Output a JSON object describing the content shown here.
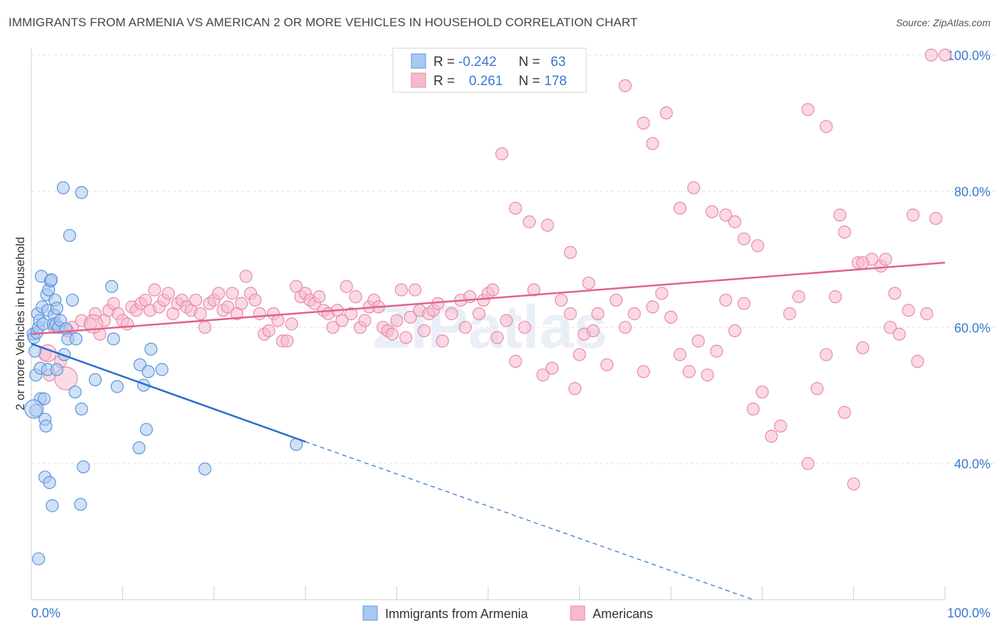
{
  "title": "IMMIGRANTS FROM ARMENIA VS AMERICAN 2 OR MORE VEHICLES IN HOUSEHOLD CORRELATION CHART",
  "source": "Source: ZipAtlas.com",
  "watermark": "ZIPatlas",
  "colors": {
    "blue_fill": "#a9c8ef",
    "blue_stroke": "#5b93dc",
    "blue_line": "#2a6fd0",
    "pink_fill": "#f6b9cd",
    "pink_stroke": "#e889a9",
    "pink_line": "#e0628c",
    "accent_text": "#3a78d0",
    "grid": "#e3e3e3"
  },
  "legend": {
    "rows": [
      {
        "r_label": "R =",
        "r_value": "-0.242",
        "n_label": "N =",
        "n_value": "63"
      },
      {
        "r_label": "R =",
        "r_value": "0.261",
        "n_label": "N =",
        "n_value": "178"
      }
    ]
  },
  "bottom_legend": [
    "Immigrants from Armenia",
    "Americans"
  ],
  "chart_data": {
    "type": "scatter",
    "title": "IMMIGRANTS FROM ARMENIA VS AMERICAN 2 OR MORE VEHICLES IN HOUSEHOLD CORRELATION CHART",
    "xlabel": "",
    "ylabel": "2 or more Vehicles in Household",
    "xlim": [
      0,
      100
    ],
    "ylim": [
      20,
      101
    ],
    "x_tick_labels": [
      "0.0%",
      "100.0%"
    ],
    "y_tick_values": [
      40,
      60,
      80,
      100
    ],
    "y_tick_labels": [
      "40.0%",
      "60.0%",
      "80.0%",
      "100.0%"
    ],
    "grid": true,
    "legend_position": "top-center",
    "series": [
      {
        "name": "Immigrants from Armenia",
        "color": "#a9c8ef",
        "stats": {
          "R": -0.242,
          "N": 63
        },
        "trend": {
          "x": [
            0,
            30
          ],
          "y": [
            57.6,
            43.2
          ],
          "dashed_to": [
            79,
            20
          ]
        },
        "points": [
          [
            0.2,
            59
          ],
          [
            0.3,
            58.5
          ],
          [
            0.4,
            56.5
          ],
          [
            0.5,
            53
          ],
          [
            0.5,
            47.8
          ],
          [
            0.6,
            59.2
          ],
          [
            0.7,
            62
          ],
          [
            0.8,
            60
          ],
          [
            0.9,
            61
          ],
          [
            1.0,
            54
          ],
          [
            1.0,
            49.5
          ],
          [
            1.1,
            67.5
          ],
          [
            1.2,
            63
          ],
          [
            1.3,
            60.5
          ],
          [
            1.4,
            49.5
          ],
          [
            1.5,
            46.5
          ],
          [
            1.5,
            38
          ],
          [
            1.6,
            45.5
          ],
          [
            1.7,
            64.8
          ],
          [
            1.8,
            62.5
          ],
          [
            1.8,
            53.8
          ],
          [
            1.9,
            65.5
          ],
          [
            2.0,
            37.2
          ],
          [
            2.1,
            66.8
          ],
          [
            2.2,
            67
          ],
          [
            2.3,
            33.8
          ],
          [
            2.4,
            60.5
          ],
          [
            2.5,
            61.8
          ],
          [
            2.6,
            64
          ],
          [
            2.7,
            60.5
          ],
          [
            2.8,
            53.8
          ],
          [
            2.8,
            62.8
          ],
          [
            3.0,
            60
          ],
          [
            3.2,
            61
          ],
          [
            3.5,
            80.5
          ],
          [
            3.6,
            56
          ],
          [
            3.8,
            59.8
          ],
          [
            4.0,
            58.3
          ],
          [
            4.2,
            73.5
          ],
          [
            4.5,
            64
          ],
          [
            4.8,
            50.5
          ],
          [
            4.9,
            58.3
          ],
          [
            5.4,
            34
          ],
          [
            5.5,
            79.8
          ],
          [
            5.5,
            48
          ],
          [
            5.7,
            39.5
          ],
          [
            7.0,
            52.3
          ],
          [
            8.8,
            66
          ],
          [
            9.0,
            58.3
          ],
          [
            9.4,
            51.3
          ],
          [
            11.8,
            42.3
          ],
          [
            11.9,
            54.5
          ],
          [
            12.3,
            51.5
          ],
          [
            12.6,
            45
          ],
          [
            12.8,
            53.5
          ],
          [
            13.1,
            56.8
          ],
          [
            14.3,
            53.8
          ],
          [
            19.0,
            39.2
          ],
          [
            29.0,
            42.8
          ],
          [
            0.8,
            26
          ]
        ]
      },
      {
        "name": "Americans",
        "color": "#f6b9cd",
        "stats": {
          "R": 0.261,
          "N": 178
        },
        "trend": {
          "x": [
            0,
            100
          ],
          "y": [
            59,
            69.5
          ]
        },
        "points": [
          [
            1.5,
            56
          ],
          [
            2.0,
            53
          ],
          [
            2.5,
            60
          ],
          [
            3.2,
            55
          ],
          [
            4.0,
            59.5
          ],
          [
            4.5,
            60
          ],
          [
            5.5,
            61
          ],
          [
            6.5,
            60.5
          ],
          [
            7.0,
            62
          ],
          [
            7.5,
            59
          ],
          [
            8.0,
            61
          ],
          [
            8.5,
            62.5
          ],
          [
            9.0,
            63.5
          ],
          [
            9.5,
            62
          ],
          [
            10.0,
            61
          ],
          [
            10.5,
            60.5
          ],
          [
            11.0,
            63
          ],
          [
            11.5,
            62.5
          ],
          [
            12.0,
            63.5
          ],
          [
            12.5,
            64
          ],
          [
            13.0,
            62.5
          ],
          [
            13.5,
            65.5
          ],
          [
            14.0,
            63
          ],
          [
            14.5,
            64
          ],
          [
            15.0,
            65
          ],
          [
            15.5,
            62
          ],
          [
            16.0,
            63.5
          ],
          [
            16.5,
            64
          ],
          [
            17.0,
            63
          ],
          [
            17.5,
            62.5
          ],
          [
            18.0,
            64
          ],
          [
            18.5,
            62
          ],
          [
            19.0,
            60
          ],
          [
            19.5,
            63.5
          ],
          [
            20.0,
            64
          ],
          [
            20.5,
            65
          ],
          [
            21.0,
            62.5
          ],
          [
            21.5,
            63
          ],
          [
            22.0,
            65
          ],
          [
            22.5,
            62
          ],
          [
            23.0,
            63.5
          ],
          [
            23.5,
            67.5
          ],
          [
            24.0,
            65
          ],
          [
            24.5,
            64
          ],
          [
            25.0,
            62
          ],
          [
            25.5,
            59
          ],
          [
            26.0,
            59.5
          ],
          [
            26.5,
            62
          ],
          [
            27.0,
            61
          ],
          [
            27.5,
            58
          ],
          [
            28.0,
            58
          ],
          [
            28.5,
            60.5
          ],
          [
            29.0,
            66
          ],
          [
            29.5,
            64.5
          ],
          [
            30.0,
            65
          ],
          [
            30.5,
            64
          ],
          [
            31.0,
            63.5
          ],
          [
            31.5,
            64.5
          ],
          [
            32.0,
            62.5
          ],
          [
            32.5,
            62
          ],
          [
            33.0,
            60
          ],
          [
            33.5,
            62.5
          ],
          [
            34.0,
            61
          ],
          [
            34.5,
            66
          ],
          [
            35.0,
            62
          ],
          [
            35.5,
            64.5
          ],
          [
            36.0,
            60
          ],
          [
            36.5,
            61
          ],
          [
            37.0,
            63
          ],
          [
            37.5,
            64
          ],
          [
            38.0,
            63
          ],
          [
            38.5,
            60
          ],
          [
            39.0,
            59.5
          ],
          [
            39.5,
            59
          ],
          [
            40.0,
            61
          ],
          [
            40.5,
            65.5
          ],
          [
            41.0,
            58.5
          ],
          [
            41.5,
            61.5
          ],
          [
            42.0,
            65.5
          ],
          [
            42.5,
            62.5
          ],
          [
            43.0,
            59.5
          ],
          [
            43.5,
            62
          ],
          [
            44.0,
            62.5
          ],
          [
            44.5,
            63.5
          ],
          [
            45.0,
            58
          ],
          [
            46.0,
            62
          ],
          [
            47.0,
            64
          ],
          [
            47.5,
            60
          ],
          [
            48.0,
            64.5
          ],
          [
            49.0,
            62
          ],
          [
            49.5,
            64
          ],
          [
            50.0,
            65
          ],
          [
            50.5,
            65.5
          ],
          [
            51.0,
            58.5
          ],
          [
            52.0,
            61
          ],
          [
            53.0,
            55
          ],
          [
            54.0,
            60
          ],
          [
            55.0,
            65.5
          ],
          [
            56.0,
            53
          ],
          [
            57.0,
            54
          ],
          [
            58.0,
            64
          ],
          [
            59.0,
            62
          ],
          [
            59.5,
            51
          ],
          [
            60.0,
            56
          ],
          [
            60.5,
            59
          ],
          [
            61.0,
            66.5
          ],
          [
            61.5,
            59.5
          ],
          [
            62.0,
            62
          ],
          [
            63.0,
            54.5
          ],
          [
            64.0,
            64
          ],
          [
            65.0,
            60
          ],
          [
            66.0,
            62
          ],
          [
            67.0,
            53.5
          ],
          [
            68.0,
            63
          ],
          [
            69.0,
            65
          ],
          [
            70.0,
            61.5
          ],
          [
            71.0,
            56
          ],
          [
            72.0,
            53.5
          ],
          [
            73.0,
            58
          ],
          [
            74.0,
            53
          ],
          [
            75.0,
            56.5
          ],
          [
            76.0,
            64
          ],
          [
            77.0,
            59.5
          ],
          [
            78.0,
            63.5
          ],
          [
            79.0,
            48
          ],
          [
            80.0,
            50.5
          ],
          [
            81.0,
            44
          ],
          [
            82.0,
            45.5
          ],
          [
            83.0,
            62
          ],
          [
            84.0,
            64.5
          ],
          [
            85.0,
            40
          ],
          [
            86.0,
            51
          ],
          [
            87.0,
            56
          ],
          [
            88.0,
            64.5
          ],
          [
            89.0,
            47.5
          ],
          [
            90.0,
            37
          ],
          [
            91.0,
            57
          ],
          [
            92.0,
            70
          ],
          [
            93.0,
            69
          ],
          [
            94.0,
            60
          ],
          [
            94.5,
            65
          ],
          [
            95.0,
            59
          ],
          [
            96.0,
            62.5
          ],
          [
            97.0,
            55
          ],
          [
            98.0,
            62
          ],
          [
            99.0,
            76
          ],
          [
            51.5,
            85.5
          ],
          [
            53.0,
            77.5
          ],
          [
            54.5,
            75.5
          ],
          [
            56.5,
            75
          ],
          [
            59.0,
            71
          ],
          [
            65.0,
            95.5
          ],
          [
            67.0,
            90
          ],
          [
            68.0,
            87
          ],
          [
            69.5,
            91.5
          ],
          [
            71.0,
            77.5
          ],
          [
            72.5,
            80.5
          ],
          [
            74.5,
            77
          ],
          [
            76.0,
            76.5
          ],
          [
            77.0,
            75.5
          ],
          [
            78.0,
            73
          ],
          [
            79.5,
            72
          ],
          [
            85.0,
            92
          ],
          [
            87.0,
            89.5
          ],
          [
            88.5,
            76.5
          ],
          [
            89.0,
            74
          ],
          [
            90.5,
            69.5
          ],
          [
            91.0,
            69.5
          ],
          [
            93.5,
            70
          ],
          [
            96.5,
            76.5
          ],
          [
            98.5,
            100
          ],
          [
            100.0,
            100
          ]
        ]
      }
    ]
  }
}
